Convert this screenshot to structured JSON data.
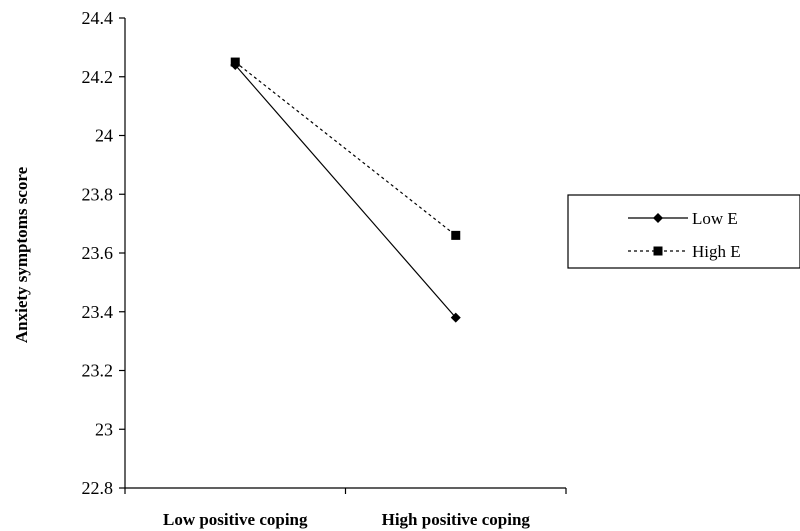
{
  "chart_data": {
    "type": "line",
    "title": "",
    "xlabel": "",
    "ylabel": "Anxiety symptoms score",
    "categories": [
      "Low positive coping",
      "High positive coping"
    ],
    "ylim": [
      22.8,
      24.4
    ],
    "yticks": [
      "24.4",
      "24.2",
      "24",
      "23.8",
      "23.6",
      "23.4",
      "23.2",
      "23",
      "22.8"
    ],
    "grid": false,
    "legend_position": "right",
    "series": [
      {
        "name": "Low E",
        "values": [
          24.24,
          23.38
        ],
        "style": "solid",
        "marker": "diamond",
        "color": "#000000"
      },
      {
        "name": "High E",
        "values": [
          24.25,
          23.66
        ],
        "style": "dotted",
        "marker": "square",
        "color": "#000000"
      }
    ]
  }
}
